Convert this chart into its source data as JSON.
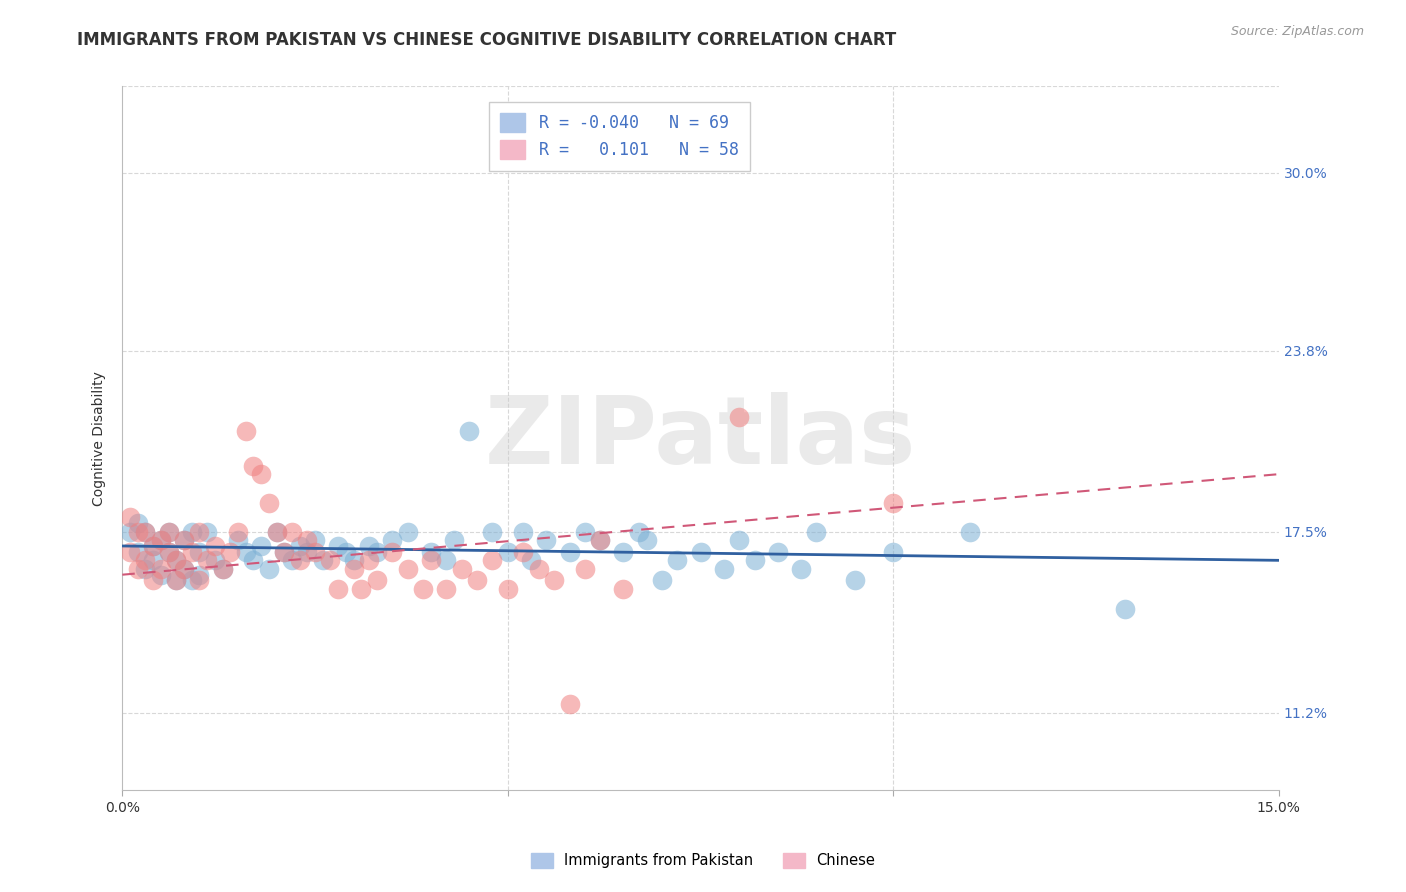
{
  "title": "IMMIGRANTS FROM PAKISTAN VS CHINESE COGNITIVE DISABILITY CORRELATION CHART",
  "source": "Source: ZipAtlas.com",
  "ylabel": "Cognitive Disability",
  "ytick_labels": [
    "11.2%",
    "17.5%",
    "23.8%",
    "30.0%"
  ],
  "ytick_values": [
    0.112,
    0.175,
    0.238,
    0.3
  ],
  "xlim": [
    0.0,
    0.15
  ],
  "ylim": [
    0.085,
    0.33
  ],
  "watermark": "ZIPatlas",
  "blue_color": "#7bafd4",
  "pink_color": "#f08080",
  "blue_line_color": "#3060a0",
  "pink_line_color": "#d05878",
  "blue_scatter": [
    [
      0.001,
      0.175
    ],
    [
      0.002,
      0.178
    ],
    [
      0.002,
      0.168
    ],
    [
      0.003,
      0.175
    ],
    [
      0.003,
      0.162
    ],
    [
      0.004,
      0.17
    ],
    [
      0.004,
      0.165
    ],
    [
      0.005,
      0.172
    ],
    [
      0.005,
      0.16
    ],
    [
      0.006,
      0.168
    ],
    [
      0.006,
      0.175
    ],
    [
      0.007,
      0.165
    ],
    [
      0.007,
      0.158
    ],
    [
      0.008,
      0.172
    ],
    [
      0.008,
      0.162
    ],
    [
      0.009,
      0.175
    ],
    [
      0.009,
      0.158
    ],
    [
      0.01,
      0.168
    ],
    [
      0.01,
      0.16
    ],
    [
      0.011,
      0.175
    ],
    [
      0.012,
      0.165
    ],
    [
      0.013,
      0.162
    ],
    [
      0.015,
      0.172
    ],
    [
      0.016,
      0.168
    ],
    [
      0.017,
      0.165
    ],
    [
      0.018,
      0.17
    ],
    [
      0.019,
      0.162
    ],
    [
      0.02,
      0.175
    ],
    [
      0.021,
      0.168
    ],
    [
      0.022,
      0.165
    ],
    [
      0.023,
      0.17
    ],
    [
      0.024,
      0.168
    ],
    [
      0.025,
      0.172
    ],
    [
      0.026,
      0.165
    ],
    [
      0.028,
      0.17
    ],
    [
      0.029,
      0.168
    ],
    [
      0.03,
      0.165
    ],
    [
      0.032,
      0.17
    ],
    [
      0.033,
      0.168
    ],
    [
      0.035,
      0.172
    ],
    [
      0.037,
      0.175
    ],
    [
      0.04,
      0.168
    ],
    [
      0.042,
      0.165
    ],
    [
      0.043,
      0.172
    ],
    [
      0.045,
      0.21
    ],
    [
      0.048,
      0.175
    ],
    [
      0.05,
      0.168
    ],
    [
      0.052,
      0.175
    ],
    [
      0.053,
      0.165
    ],
    [
      0.055,
      0.172
    ],
    [
      0.058,
      0.168
    ],
    [
      0.06,
      0.175
    ],
    [
      0.062,
      0.172
    ],
    [
      0.065,
      0.168
    ],
    [
      0.067,
      0.175
    ],
    [
      0.068,
      0.172
    ],
    [
      0.07,
      0.158
    ],
    [
      0.072,
      0.165
    ],
    [
      0.075,
      0.168
    ],
    [
      0.078,
      0.162
    ],
    [
      0.08,
      0.172
    ],
    [
      0.082,
      0.165
    ],
    [
      0.085,
      0.168
    ],
    [
      0.088,
      0.162
    ],
    [
      0.09,
      0.175
    ],
    [
      0.095,
      0.158
    ],
    [
      0.1,
      0.168
    ],
    [
      0.11,
      0.175
    ],
    [
      0.13,
      0.148
    ]
  ],
  "pink_scatter": [
    [
      0.001,
      0.18
    ],
    [
      0.001,
      0.168
    ],
    [
      0.002,
      0.175
    ],
    [
      0.002,
      0.162
    ],
    [
      0.003,
      0.175
    ],
    [
      0.003,
      0.165
    ],
    [
      0.004,
      0.17
    ],
    [
      0.004,
      0.158
    ],
    [
      0.005,
      0.172
    ],
    [
      0.005,
      0.162
    ],
    [
      0.006,
      0.168
    ],
    [
      0.006,
      0.175
    ],
    [
      0.007,
      0.165
    ],
    [
      0.007,
      0.158
    ],
    [
      0.008,
      0.172
    ],
    [
      0.008,
      0.162
    ],
    [
      0.009,
      0.168
    ],
    [
      0.01,
      0.175
    ],
    [
      0.01,
      0.158
    ],
    [
      0.011,
      0.165
    ],
    [
      0.012,
      0.17
    ],
    [
      0.013,
      0.162
    ],
    [
      0.014,
      0.168
    ],
    [
      0.015,
      0.175
    ],
    [
      0.016,
      0.21
    ],
    [
      0.017,
      0.198
    ],
    [
      0.018,
      0.195
    ],
    [
      0.019,
      0.185
    ],
    [
      0.02,
      0.175
    ],
    [
      0.021,
      0.168
    ],
    [
      0.022,
      0.175
    ],
    [
      0.023,
      0.165
    ],
    [
      0.024,
      0.172
    ],
    [
      0.025,
      0.168
    ],
    [
      0.027,
      0.165
    ],
    [
      0.028,
      0.155
    ],
    [
      0.03,
      0.162
    ],
    [
      0.031,
      0.155
    ],
    [
      0.032,
      0.165
    ],
    [
      0.033,
      0.158
    ],
    [
      0.035,
      0.168
    ],
    [
      0.037,
      0.162
    ],
    [
      0.039,
      0.155
    ],
    [
      0.04,
      0.165
    ],
    [
      0.042,
      0.155
    ],
    [
      0.044,
      0.162
    ],
    [
      0.046,
      0.158
    ],
    [
      0.048,
      0.165
    ],
    [
      0.05,
      0.155
    ],
    [
      0.052,
      0.168
    ],
    [
      0.054,
      0.162
    ],
    [
      0.056,
      0.158
    ],
    [
      0.058,
      0.115
    ],
    [
      0.06,
      0.162
    ],
    [
      0.062,
      0.172
    ],
    [
      0.065,
      0.155
    ],
    [
      0.08,
      0.215
    ],
    [
      0.1,
      0.185
    ]
  ],
  "blue_line_x": [
    0.0,
    0.15
  ],
  "blue_line_y": [
    0.17,
    0.165
  ],
  "pink_line_x": [
    0.0,
    0.15
  ],
  "pink_line_y": [
    0.16,
    0.195
  ],
  "grid_color": "#d8d8d8",
  "background_color": "#ffffff",
  "title_fontsize": 12,
  "axis_label_fontsize": 10,
  "tick_fontsize": 10,
  "legend_fontsize": 12
}
